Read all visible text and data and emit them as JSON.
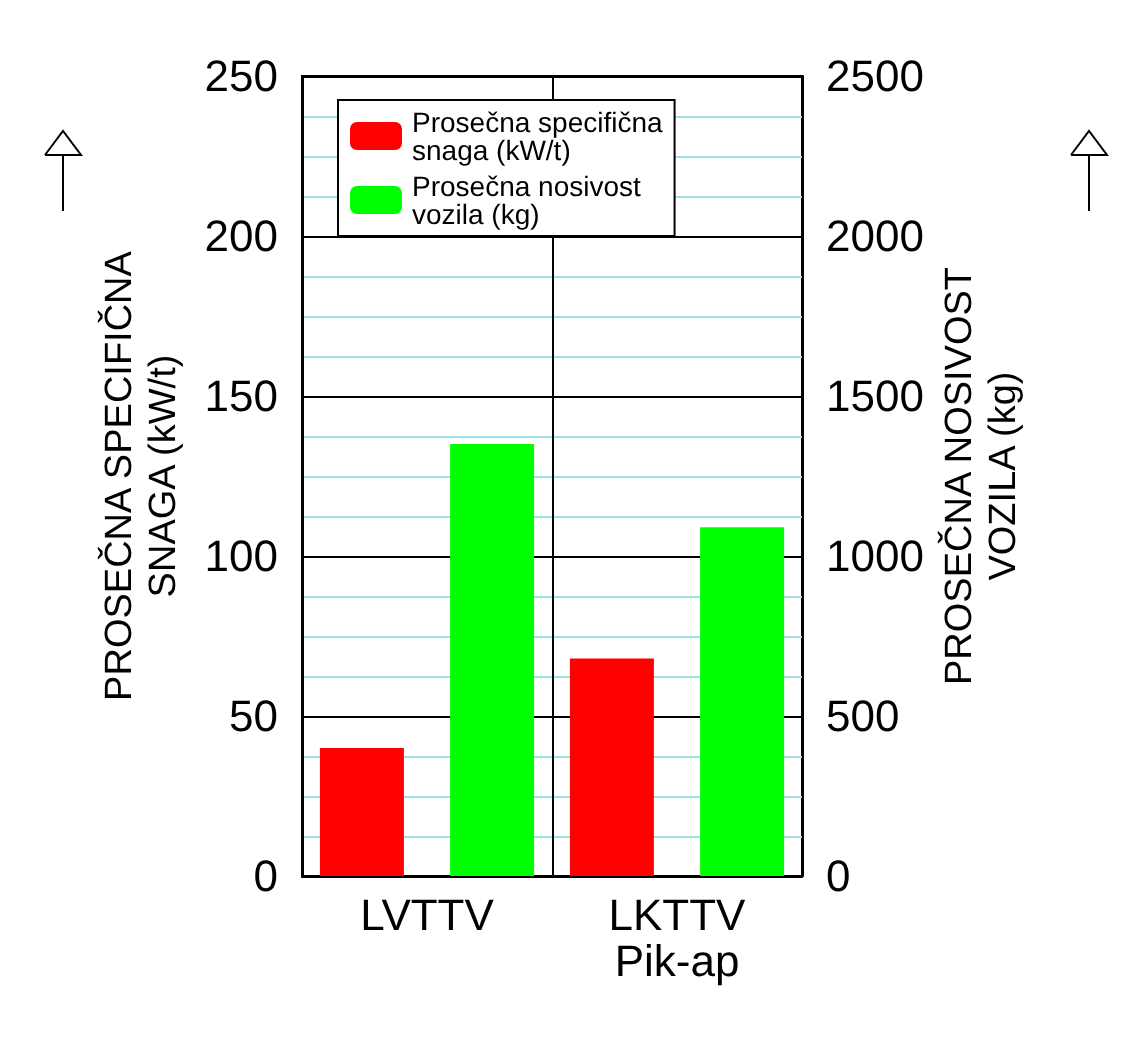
{
  "chart_data": {
    "type": "bar",
    "categories": [
      "LVTTV",
      "LKTTV\nPik-ap"
    ],
    "ylabel": "PROSEČNA SPECIFIČNA\nSNAGA (kW/t)",
    "y2label": "PROSEČNA NOSIVOST\nVOZILA (kg)",
    "series": [
      {
        "name": "Prosečna specifična\nsnaga (kW/t)",
        "color": "#ff0000",
        "values": [
          40,
          68
        ]
      },
      {
        "name": "Prosečna nosivost\nvozila (kg)",
        "color": "#00ff00",
        "values": [
          1350,
          1090
        ],
        "axis": "y2"
      }
    ],
    "ylim": [
      0,
      250
    ],
    "yticks": [
      0,
      {
        "value": 12.5,
        "label": null
      },
      {
        "value": 25,
        "label": null
      },
      {
        "value": 37.5,
        "label": null
      },
      50,
      {
        "value": 62.5,
        "label": null
      },
      {
        "value": 75,
        "label": null
      },
      {
        "value": 87.5,
        "label": null
      },
      100,
      {
        "value": 112.5,
        "label": null
      },
      {
        "value": 125,
        "label": null
      },
      {
        "value": 137.5,
        "label": null
      },
      150,
      {
        "value": 162.5,
        "label": null
      },
      {
        "value": 175,
        "label": null
      },
      {
        "value": 187.5,
        "label": null
      },
      200,
      {
        "value": 212.5,
        "label": null
      },
      {
        "value": 225,
        "label": null
      },
      {
        "value": 237.5,
        "label": null
      },
      250
    ],
    "y2lim": [
      0,
      2500
    ],
    "y2ticks": [
      0,
      500,
      1000,
      1500,
      2000,
      2500
    ],
    "grid": true,
    "legend": "top left"
  }
}
